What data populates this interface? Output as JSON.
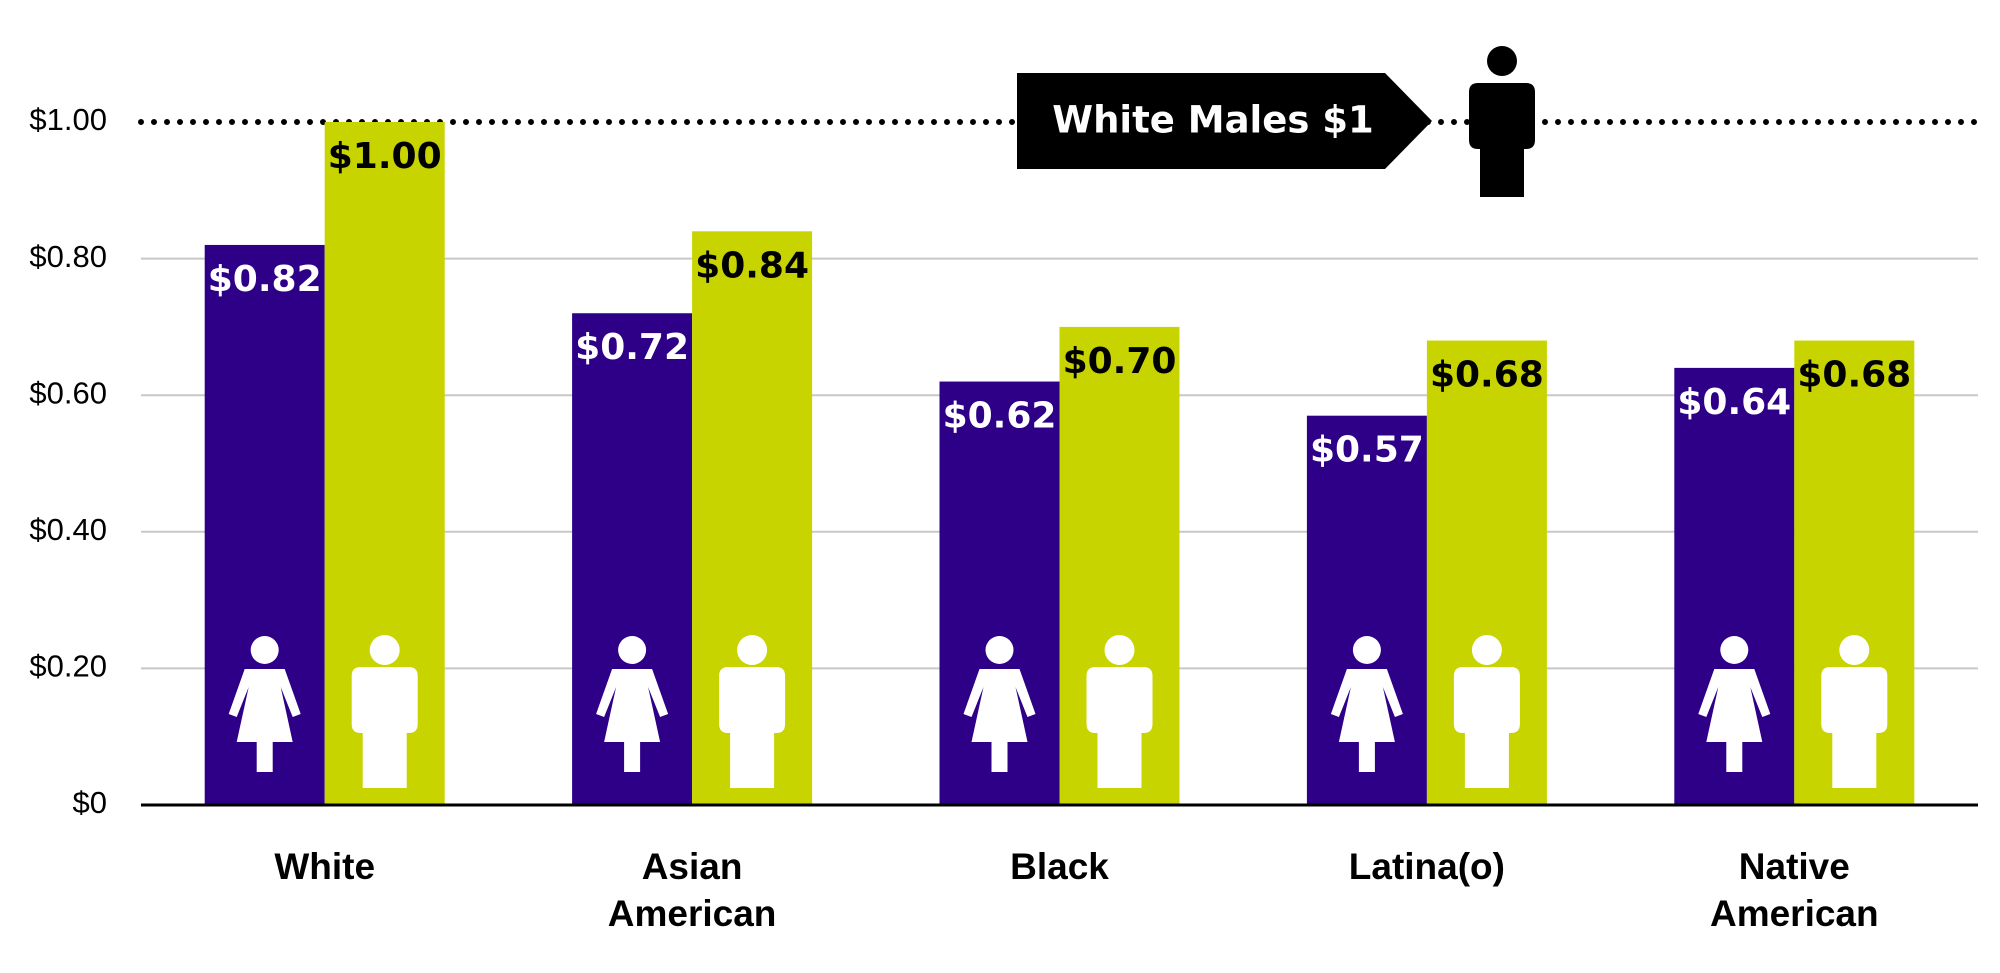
{
  "chart_data": {
    "type": "bar",
    "categories": [
      "White",
      "Asian American",
      "Black",
      "Latina(o)",
      "Native American"
    ],
    "series": [
      {
        "color": "#2e0088",
        "values": [
          0.82,
          0.72,
          0.62,
          0.57,
          0.64
        ],
        "value_labels": [
          "$0.82",
          "$0.72",
          "$0.62",
          "$0.57",
          "$0.64"
        ]
      },
      {
        "color": "#c8d400",
        "values": [
          1.0,
          0.84,
          0.7,
          0.68,
          0.68
        ],
        "value_labels": [
          "$1.00",
          "$0.84",
          "$0.70",
          "$0.68",
          "$0.68"
        ]
      }
    ],
    "ylim": [
      0,
      1
    ],
    "yticks": [
      {
        "value": 0,
        "label": "$0"
      },
      {
        "value": 0.2,
        "label": "$0.20"
      },
      {
        "value": 0.4,
        "label": "$0.40"
      },
      {
        "value": 0.6,
        "label": "$0.60"
      },
      {
        "value": 0.8,
        "label": "$0.80"
      },
      {
        "value": 1,
        "label": "$1.00"
      }
    ],
    "grid": true,
    "annotation": "White Males $1"
  }
}
